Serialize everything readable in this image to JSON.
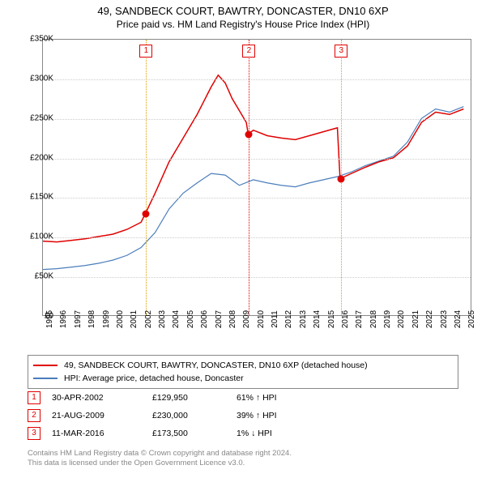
{
  "title_line1": "49, SANDBECK COURT, BAWTRY, DONCASTER, DN10 6XP",
  "title_line2": "Price paid vs. HM Land Registry's House Price Index (HPI)",
  "chart": {
    "type": "line",
    "x_min": 1995,
    "x_max": 2025.5,
    "y_min": 0,
    "y_max": 350000,
    "ytick_step": 50000,
    "yticks": [
      "£0",
      "£50K",
      "£100K",
      "£150K",
      "£200K",
      "£250K",
      "£300K",
      "£350K"
    ],
    "xticks": [
      1995,
      1996,
      1997,
      1998,
      1999,
      2000,
      2001,
      2002,
      2003,
      2004,
      2005,
      2006,
      2007,
      2008,
      2009,
      2010,
      2011,
      2012,
      2013,
      2014,
      2015,
      2016,
      2017,
      2018,
      2019,
      2020,
      2021,
      2022,
      2023,
      2024,
      2025
    ],
    "grid_color": "#cccccc",
    "series_red": {
      "color": "#e00000",
      "width": 1.5,
      "label": "49, SANDBECK COURT, BAWTRY, DONCASTER, DN10 6XP (detached house)",
      "points": [
        [
          1995,
          94000
        ],
        [
          1996,
          93000
        ],
        [
          1997,
          95000
        ],
        [
          1998,
          97000
        ],
        [
          1999,
          100000
        ],
        [
          2000,
          103000
        ],
        [
          2001,
          109000
        ],
        [
          2002,
          118000
        ],
        [
          2002.33,
          129950
        ],
        [
          2003,
          155000
        ],
        [
          2004,
          195000
        ],
        [
          2005,
          225000
        ],
        [
          2006,
          255000
        ],
        [
          2007,
          290000
        ],
        [
          2007.5,
          305000
        ],
        [
          2008,
          295000
        ],
        [
          2008.5,
          275000
        ],
        [
          2009,
          260000
        ],
        [
          2009.5,
          245000
        ],
        [
          2009.64,
          230000
        ],
        [
          2010,
          235000
        ],
        [
          2011,
          228000
        ],
        [
          2012,
          225000
        ],
        [
          2013,
          223000
        ],
        [
          2014,
          228000
        ],
        [
          2015,
          233000
        ],
        [
          2016,
          238000
        ],
        [
          2016.19,
          173500
        ],
        [
          2017,
          180000
        ],
        [
          2018,
          188000
        ],
        [
          2019,
          195000
        ],
        [
          2020,
          200000
        ],
        [
          2021,
          215000
        ],
        [
          2022,
          245000
        ],
        [
          2023,
          258000
        ],
        [
          2024,
          255000
        ],
        [
          2025,
          262000
        ]
      ]
    },
    "series_blue": {
      "color": "#4a7ebb",
      "width": 1.2,
      "label": "HPI: Average price, detached house, Doncaster",
      "points": [
        [
          1995,
          58000
        ],
        [
          1996,
          59000
        ],
        [
          1997,
          61000
        ],
        [
          1998,
          63000
        ],
        [
          1999,
          66000
        ],
        [
          2000,
          70000
        ],
        [
          2001,
          76000
        ],
        [
          2002,
          86000
        ],
        [
          2003,
          105000
        ],
        [
          2004,
          135000
        ],
        [
          2005,
          155000
        ],
        [
          2006,
          168000
        ],
        [
          2007,
          180000
        ],
        [
          2008,
          178000
        ],
        [
          2009,
          165000
        ],
        [
          2010,
          172000
        ],
        [
          2011,
          168000
        ],
        [
          2012,
          165000
        ],
        [
          2013,
          163000
        ],
        [
          2014,
          168000
        ],
        [
          2015,
          172000
        ],
        [
          2016,
          176000
        ],
        [
          2017,
          182000
        ],
        [
          2018,
          190000
        ],
        [
          2019,
          196000
        ],
        [
          2020,
          202000
        ],
        [
          2021,
          220000
        ],
        [
          2022,
          250000
        ],
        [
          2023,
          262000
        ],
        [
          2024,
          258000
        ],
        [
          2025,
          265000
        ]
      ]
    },
    "markers": [
      {
        "n": "1",
        "x": 2002.33,
        "y": 129950,
        "color": "#e0a000"
      },
      {
        "n": "2",
        "x": 2009.64,
        "y": 230000,
        "color": "#e00000"
      },
      {
        "n": "3",
        "x": 2016.19,
        "y": 173500,
        "color": "#e0a000"
      }
    ]
  },
  "sales": [
    {
      "n": "1",
      "date": "30-APR-2002",
      "price": "£129,950",
      "hpi": "61% ↑ HPI"
    },
    {
      "n": "2",
      "date": "21-AUG-2009",
      "price": "£230,000",
      "hpi": "39% ↑ HPI"
    },
    {
      "n": "3",
      "date": "11-MAR-2016",
      "price": "£173,500",
      "hpi": "1% ↓ HPI"
    }
  ],
  "footer_line1": "Contains HM Land Registry data © Crown copyright and database right 2024.",
  "footer_line2": "This data is licensed under the Open Government Licence v3.0."
}
